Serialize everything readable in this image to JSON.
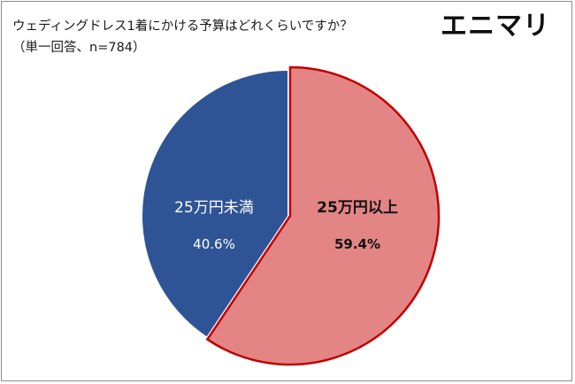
{
  "header": {
    "title": "ウェディングドレス1着にかける予算はどれくらいですか？",
    "subtitle": "（単一回答、n=784）",
    "logo": "エニマリ"
  },
  "chart_data": {
    "type": "pie",
    "categories": [
      "25万円以上",
      "25万円未満"
    ],
    "values": [
      59.4,
      40.6
    ],
    "value_labels": [
      "59.4%",
      "40.6%"
    ],
    "colors": [
      "#e38585",
      "#2f5496"
    ],
    "highlight_outline": "#c00000",
    "legend": "none",
    "start": "12 o'clock, clockwise"
  }
}
